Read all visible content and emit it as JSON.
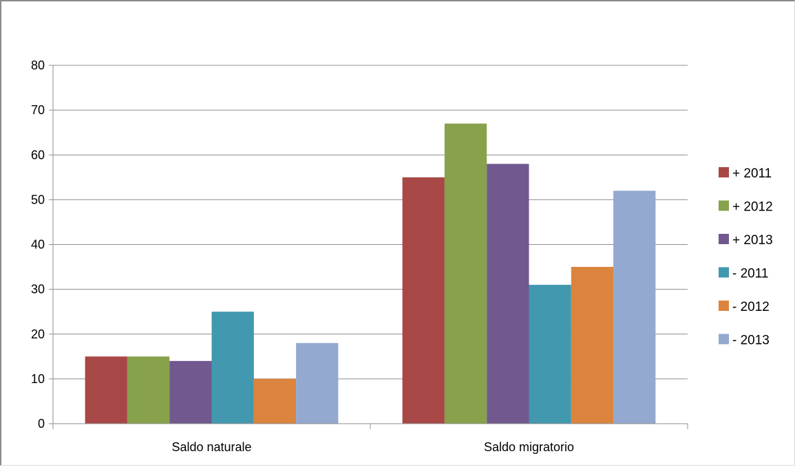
{
  "chart_data": {
    "type": "bar",
    "title": "",
    "xlabel": "",
    "ylabel": "",
    "categories": [
      "Saldo naturale",
      "Saldo migratorio"
    ],
    "series": [
      {
        "name": "+ 2011",
        "color": "#A84846",
        "values": [
          15,
          55
        ]
      },
      {
        "name": "+ 2012",
        "color": "#87A24A",
        "values": [
          15,
          67
        ]
      },
      {
        "name": "+ 2013",
        "color": "#71588F",
        "values": [
          14,
          58
        ]
      },
      {
        "name": "- 2011",
        "color": "#4198AF",
        "values": [
          25,
          31
        ]
      },
      {
        "name": "- 2012",
        "color": "#DB843D",
        "values": [
          10,
          35
        ]
      },
      {
        "name": "- 2013",
        "color": "#93A9CF",
        "values": [
          18,
          52
        ]
      }
    ],
    "ylim": [
      0,
      80
    ],
    "yticks": [
      "0",
      "10",
      "20",
      "30",
      "40",
      "50",
      "60",
      "70",
      "80"
    ],
    "grid": true,
    "legend_position": "right"
  }
}
